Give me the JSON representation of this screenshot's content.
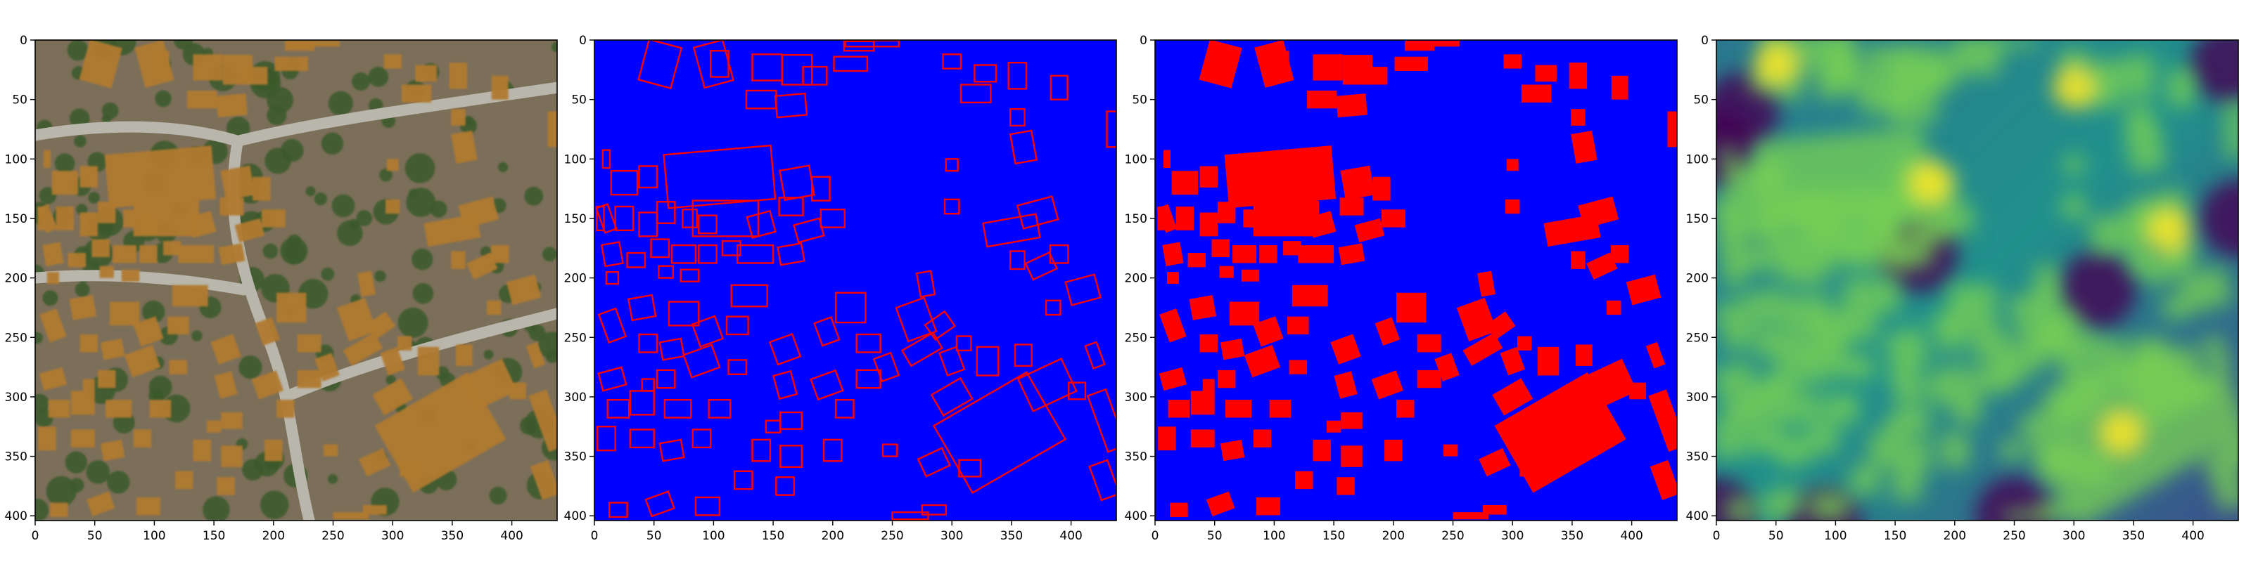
{
  "figure": {
    "panels": [
      {
        "id": "aerial-image",
        "content": "aerial-photo"
      },
      {
        "id": "building-outlines",
        "content": "outline-polygons"
      },
      {
        "id": "building-masks",
        "content": "filled-polygons"
      },
      {
        "id": "distance-map",
        "content": "heatmap"
      }
    ]
  },
  "colors": {
    "background": "#0000ff",
    "building": "#ff0000",
    "heat_low": "#440154",
    "heat_mid": "#21918c",
    "heat_high": "#fde725",
    "aerial_ground": "#7c6f5a",
    "aerial_roof": "#b07a2f",
    "aerial_tree": "#3b5a2b",
    "aerial_road": "#b9b6ac"
  },
  "chart_data": [
    {
      "type": "heatmap",
      "image": "aerial-rgb",
      "xlim": [
        0,
        438
      ],
      "ylim": [
        404,
        0
      ],
      "xticks": [
        0,
        50,
        100,
        150,
        200,
        250,
        300,
        350,
        400
      ],
      "yticks": [
        0,
        50,
        100,
        150,
        200,
        250,
        300,
        350,
        400
      ],
      "grid": false,
      "legend": "none"
    },
    {
      "type": "heatmap",
      "image": "building-outlines",
      "xlim": [
        0,
        438
      ],
      "ylim": [
        404,
        0
      ],
      "xticks": [
        0,
        50,
        100,
        150,
        200,
        250,
        300,
        350,
        400
      ],
      "yticks": [
        0,
        50,
        100,
        150,
        200,
        250,
        300,
        350,
        400
      ],
      "grid": false,
      "legend": "none"
    },
    {
      "type": "heatmap",
      "image": "building-masks",
      "xlim": [
        0,
        438
      ],
      "ylim": [
        404,
        0
      ],
      "xticks": [
        0,
        50,
        100,
        150,
        200,
        250,
        300,
        350,
        400
      ],
      "yticks": [
        0,
        50,
        100,
        150,
        200,
        250,
        300,
        350,
        400
      ],
      "grid": false,
      "legend": "none"
    },
    {
      "type": "heatmap",
      "image": "distance-transform",
      "xlim": [
        0,
        438
      ],
      "ylim": [
        404,
        0
      ],
      "xticks": [
        0,
        50,
        100,
        150,
        200,
        250,
        300,
        350,
        400
      ],
      "yticks": [
        0,
        50,
        100,
        150,
        200,
        250,
        300,
        350,
        400
      ],
      "grid": false,
      "legend": "none"
    }
  ],
  "buildings": [
    {
      "x": 340,
      "y": 330,
      "w": 90,
      "h": 65,
      "a": -30
    },
    {
      "x": 380,
      "y": 290,
      "w": 40,
      "h": 30,
      "a": -25
    },
    {
      "x": 300,
      "y": 300,
      "w": 28,
      "h": 20,
      "a": -30
    },
    {
      "x": 430,
      "y": 320,
      "w": 16,
      "h": 50,
      "a": -20
    },
    {
      "x": 330,
      "y": 270,
      "w": 18,
      "h": 24,
      "a": 0
    },
    {
      "x": 360,
      "y": 265,
      "w": 14,
      "h": 18,
      "a": 0
    },
    {
      "x": 405,
      "y": 295,
      "w": 14,
      "h": 14,
      "a": 0
    },
    {
      "x": 285,
      "y": 355,
      "w": 22,
      "h": 16,
      "a": -25
    },
    {
      "x": 315,
      "y": 360,
      "w": 18,
      "h": 14,
      "a": 0
    },
    {
      "x": 265,
      "y": 400,
      "w": 30,
      "h": 6,
      "a": 0
    },
    {
      "x": 428,
      "y": 370,
      "w": 16,
      "h": 30,
      "a": -20
    },
    {
      "x": 420,
      "y": 265,
      "w": 10,
      "h": 20,
      "a": -20
    },
    {
      "x": 105,
      "y": 115,
      "w": 90,
      "h": 45,
      "a": -5
    },
    {
      "x": 110,
      "y": 150,
      "w": 55,
      "h": 30,
      "a": 0
    },
    {
      "x": 100,
      "y": 20,
      "w": 25,
      "h": 35,
      "a": -15
    },
    {
      "x": 105,
      "y": 20,
      "w": 15,
      "h": 22,
      "a": 0
    },
    {
      "x": 170,
      "y": 25,
      "w": 25,
      "h": 25,
      "a": 0
    },
    {
      "x": 185,
      "y": 30,
      "w": 20,
      "h": 15,
      "a": 0
    },
    {
      "x": 233,
      "y": 3,
      "w": 45,
      "h": 5,
      "a": 0
    },
    {
      "x": 328,
      "y": 28,
      "w": 18,
      "h": 14,
      "a": 0
    },
    {
      "x": 320,
      "y": 45,
      "w": 25,
      "h": 15,
      "a": 0
    },
    {
      "x": 300,
      "y": 18,
      "w": 15,
      "h": 12,
      "a": 0
    },
    {
      "x": 355,
      "y": 30,
      "w": 15,
      "h": 22,
      "a": 0
    },
    {
      "x": 55,
      "y": 20,
      "w": 28,
      "h": 35,
      "a": 15
    },
    {
      "x": 145,
      "y": 23,
      "w": 25,
      "h": 22,
      "a": 0
    },
    {
      "x": 165,
      "y": 55,
      "w": 25,
      "h": 18,
      "a": -5
    },
    {
      "x": 140,
      "y": 50,
      "w": 25,
      "h": 15,
      "a": 0
    },
    {
      "x": 215,
      "y": 20,
      "w": 28,
      "h": 12,
      "a": 0
    },
    {
      "x": 222,
      "y": 5,
      "w": 25,
      "h": 8,
      "a": 0
    },
    {
      "x": 390,
      "y": 40,
      "w": 14,
      "h": 20,
      "a": 0
    },
    {
      "x": 435,
      "y": 75,
      "w": 10,
      "h": 30,
      "a": 0
    },
    {
      "x": 355,
      "y": 65,
      "w": 12,
      "h": 14,
      "a": 0
    },
    {
      "x": 360,
      "y": 90,
      "w": 18,
      "h": 25,
      "a": -10
    },
    {
      "x": 170,
      "y": 120,
      "w": 25,
      "h": 25,
      "a": -10
    },
    {
      "x": 190,
      "y": 125,
      "w": 15,
      "h": 20,
      "a": 0
    },
    {
      "x": 165,
      "y": 140,
      "w": 20,
      "h": 15,
      "a": 0
    },
    {
      "x": 200,
      "y": 150,
      "w": 20,
      "h": 15,
      "a": 0
    },
    {
      "x": 180,
      "y": 160,
      "w": 22,
      "h": 15,
      "a": -15
    },
    {
      "x": 165,
      "y": 180,
      "w": 20,
      "h": 15,
      "a": -10
    },
    {
      "x": 300,
      "y": 105,
      "w": 10,
      "h": 10,
      "a": 0
    },
    {
      "x": 300,
      "y": 140,
      "w": 12,
      "h": 12,
      "a": 0
    },
    {
      "x": 350,
      "y": 160,
      "w": 45,
      "h": 20,
      "a": -10
    },
    {
      "x": 372,
      "y": 145,
      "w": 30,
      "h": 20,
      "a": -15
    },
    {
      "x": 355,
      "y": 185,
      "w": 12,
      "h": 15,
      "a": 0
    },
    {
      "x": 375,
      "y": 190,
      "w": 22,
      "h": 15,
      "a": -25
    },
    {
      "x": 390,
      "y": 180,
      "w": 15,
      "h": 15,
      "a": 0
    },
    {
      "x": 410,
      "y": 210,
      "w": 25,
      "h": 20,
      "a": -15
    },
    {
      "x": 278,
      "y": 205,
      "w": 12,
      "h": 20,
      "a": -10
    },
    {
      "x": 385,
      "y": 225,
      "w": 12,
      "h": 12,
      "a": 0
    },
    {
      "x": 215,
      "y": 225,
      "w": 25,
      "h": 25,
      "a": 0
    },
    {
      "x": 195,
      "y": 245,
      "w": 15,
      "h": 20,
      "a": -20
    },
    {
      "x": 230,
      "y": 255,
      "w": 20,
      "h": 15,
      "a": 0
    },
    {
      "x": 270,
      "y": 235,
      "w": 25,
      "h": 30,
      "a": -20
    },
    {
      "x": 290,
      "y": 240,
      "w": 20,
      "h": 15,
      "a": -35
    },
    {
      "x": 245,
      "y": 275,
      "w": 15,
      "h": 20,
      "a": -20
    },
    {
      "x": 275,
      "y": 260,
      "w": 30,
      "h": 15,
      "a": -30
    },
    {
      "x": 300,
      "y": 270,
      "w": 15,
      "h": 20,
      "a": -20
    },
    {
      "x": 310,
      "y": 255,
      "w": 12,
      "h": 12,
      "a": 0
    },
    {
      "x": 230,
      "y": 285,
      "w": 20,
      "h": 15,
      "a": 0
    },
    {
      "x": 160,
      "y": 260,
      "w": 20,
      "h": 20,
      "a": -20
    },
    {
      "x": 160,
      "y": 290,
      "w": 15,
      "h": 20,
      "a": -15
    },
    {
      "x": 195,
      "y": 290,
      "w": 22,
      "h": 18,
      "a": -20
    },
    {
      "x": 210,
      "y": 310,
      "w": 15,
      "h": 15,
      "a": 0
    },
    {
      "x": 165,
      "y": 320,
      "w": 18,
      "h": 14,
      "a": 0
    },
    {
      "x": 150,
      "y": 325,
      "w": 12,
      "h": 10,
      "a": 0
    },
    {
      "x": 95,
      "y": 245,
      "w": 20,
      "h": 20,
      "a": -20
    },
    {
      "x": 120,
      "y": 240,
      "w": 18,
      "h": 15,
      "a": 0
    },
    {
      "x": 75,
      "y": 230,
      "w": 25,
      "h": 20,
      "a": 0
    },
    {
      "x": 65,
      "y": 260,
      "w": 18,
      "h": 15,
      "a": -10
    },
    {
      "x": 90,
      "y": 270,
      "w": 25,
      "h": 20,
      "a": -20
    },
    {
      "x": 60,
      "y": 285,
      "w": 15,
      "h": 15,
      "a": 0
    },
    {
      "x": 120,
      "y": 275,
      "w": 15,
      "h": 12,
      "a": 0
    },
    {
      "x": 45,
      "y": 255,
      "w": 15,
      "h": 15,
      "a": 0
    },
    {
      "x": 40,
      "y": 225,
      "w": 20,
      "h": 18,
      "a": -10
    },
    {
      "x": 15,
      "y": 240,
      "w": 15,
      "h": 25,
      "a": -20
    },
    {
      "x": 45,
      "y": 290,
      "w": 10,
      "h": 10,
      "a": 0
    },
    {
      "x": 15,
      "y": 285,
      "w": 20,
      "h": 15,
      "a": -15
    },
    {
      "x": 20,
      "y": 310,
      "w": 18,
      "h": 15,
      "a": 0
    },
    {
      "x": 40,
      "y": 305,
      "w": 20,
      "h": 20,
      "a": 0
    },
    {
      "x": 70,
      "y": 310,
      "w": 22,
      "h": 15,
      "a": 0
    },
    {
      "x": 105,
      "y": 310,
      "w": 18,
      "h": 15,
      "a": 0
    },
    {
      "x": 10,
      "y": 335,
      "w": 15,
      "h": 20,
      "a": 0
    },
    {
      "x": 40,
      "y": 335,
      "w": 20,
      "h": 15,
      "a": 0
    },
    {
      "x": 65,
      "y": 345,
      "w": 18,
      "h": 15,
      "a": -10
    },
    {
      "x": 90,
      "y": 335,
      "w": 15,
      "h": 15,
      "a": 0
    },
    {
      "x": 140,
      "y": 345,
      "w": 15,
      "h": 18,
      "a": 0
    },
    {
      "x": 165,
      "y": 350,
      "w": 18,
      "h": 18,
      "a": 0
    },
    {
      "x": 200,
      "y": 345,
      "w": 15,
      "h": 18,
      "a": 0
    },
    {
      "x": 125,
      "y": 370,
      "w": 15,
      "h": 15,
      "a": 0
    },
    {
      "x": 160,
      "y": 375,
      "w": 15,
      "h": 15,
      "a": 0
    },
    {
      "x": 55,
      "y": 390,
      "w": 20,
      "h": 15,
      "a": -20
    },
    {
      "x": 20,
      "y": 395,
      "w": 15,
      "h": 12,
      "a": 0
    },
    {
      "x": 95,
      "y": 392,
      "w": 20,
      "h": 15,
      "a": 0
    },
    {
      "x": 25,
      "y": 120,
      "w": 22,
      "h": 20,
      "a": 0
    },
    {
      "x": 45,
      "y": 115,
      "w": 15,
      "h": 18,
      "a": 0
    },
    {
      "x": 10,
      "y": 150,
      "w": 10,
      "h": 22,
      "a": -20
    },
    {
      "x": 25,
      "y": 150,
      "w": 15,
      "h": 20,
      "a": 0
    },
    {
      "x": 45,
      "y": 155,
      "w": 15,
      "h": 20,
      "a": 0
    },
    {
      "x": 60,
      "y": 145,
      "w": 15,
      "h": 18,
      "a": 0
    },
    {
      "x": 80,
      "y": 150,
      "w": 12,
      "h": 15,
      "a": 0
    },
    {
      "x": 95,
      "y": 155,
      "w": 15,
      "h": 15,
      "a": 0
    },
    {
      "x": 15,
      "y": 180,
      "w": 15,
      "h": 18,
      "a": -10
    },
    {
      "x": 35,
      "y": 185,
      "w": 15,
      "h": 12,
      "a": 0
    },
    {
      "x": 55,
      "y": 175,
      "w": 15,
      "h": 15,
      "a": 0
    },
    {
      "x": 75,
      "y": 180,
      "w": 20,
      "h": 15,
      "a": 0
    },
    {
      "x": 95,
      "y": 180,
      "w": 15,
      "h": 15,
      "a": 0
    },
    {
      "x": 60,
      "y": 195,
      "w": 12,
      "h": 10,
      "a": 0
    },
    {
      "x": 80,
      "y": 198,
      "w": 15,
      "h": 10,
      "a": 0
    },
    {
      "x": 115,
      "y": 175,
      "w": 15,
      "h": 12,
      "a": 0
    },
    {
      "x": 135,
      "y": 180,
      "w": 30,
      "h": 15,
      "a": 0
    },
    {
      "x": 140,
      "y": 155,
      "w": 20,
      "h": 18,
      "a": -15
    },
    {
      "x": 10,
      "y": 100,
      "w": 6,
      "h": 15,
      "a": 0
    },
    {
      "x": 5,
      "y": 150,
      "w": 6,
      "h": 20,
      "a": 0
    },
    {
      "x": 130,
      "y": 215,
      "w": 30,
      "h": 18,
      "a": 0
    },
    {
      "x": 15,
      "y": 200,
      "w": 10,
      "h": 10,
      "a": 0
    },
    {
      "x": 248,
      "y": 345,
      "w": 12,
      "h": 10,
      "a": 0
    },
    {
      "x": 285,
      "y": 395,
      "w": 20,
      "h": 8,
      "a": 0
    }
  ]
}
